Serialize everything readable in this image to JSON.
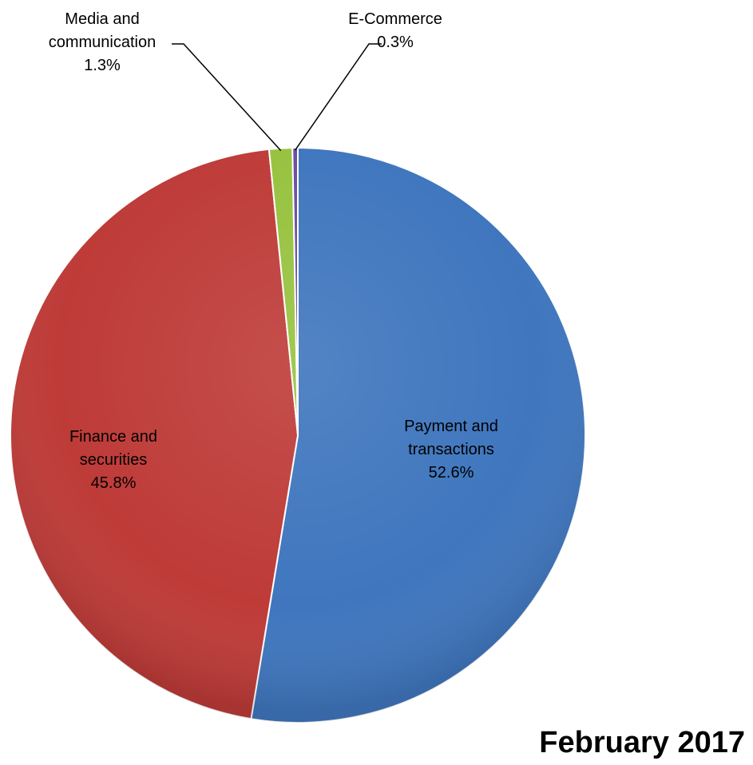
{
  "chart_data": {
    "type": "pie",
    "caption": "February 2017",
    "unit": "%",
    "slices": [
      {
        "category": "Payment and transactions",
        "label_lines": [
          "Payment and",
          "transactions"
        ],
        "value": 52.6,
        "value_label": "52.6%",
        "color": "#3f76be"
      },
      {
        "category": "Finance and securities",
        "label_lines": [
          "Finance and",
          "securities"
        ],
        "value": 45.8,
        "value_label": "45.8%",
        "color": "#be3b38"
      },
      {
        "category": "Media and communication",
        "label_lines": [
          "Media and",
          "communication"
        ],
        "value": 1.3,
        "value_label": "1.3%",
        "color": "#97c23f"
      },
      {
        "category": "E-Commerce",
        "label_lines": [
          "E-Commerce"
        ],
        "value": 0.3,
        "value_label": "0.3%",
        "color": "#6a4f9e"
      }
    ],
    "legend": "none",
    "start": "12 o'clock, clockwise"
  }
}
